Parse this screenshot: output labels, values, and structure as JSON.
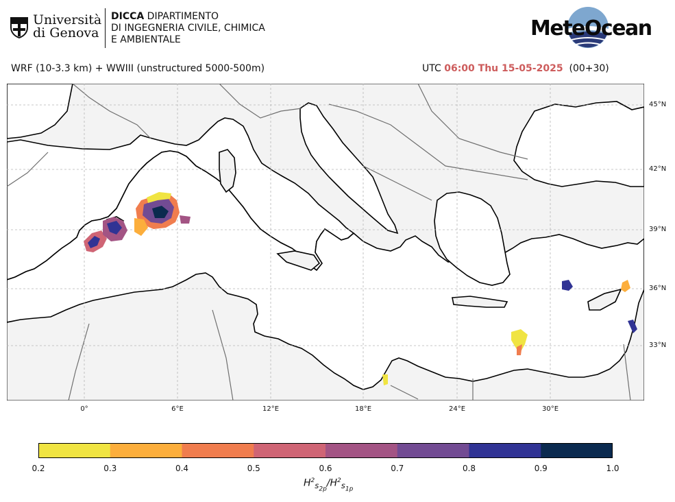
{
  "header": {
    "unige_line1": "Università",
    "unige_line2": "di Genova",
    "dicca_bold": "DICCA",
    "dicca_line1": "DIPARTIMENTO",
    "dicca_line2": "DI INGEGNERIA CIVILE, CHIMICA",
    "dicca_line3": "E AMBIENTALE",
    "meteo_logo": "MeteOcean"
  },
  "title": {
    "model": "WRF (10-3.3 km) + WWIII (unstructured 5000-500m)",
    "utc_prefix": "UTC",
    "time": "06:00 Thu 15-05-2025",
    "lead": "(00+30)"
  },
  "map": {
    "lat_labels": [
      "45°N",
      "42°N",
      "39°N",
      "36°N",
      "33°N"
    ],
    "lon_labels": [
      "0°",
      "6°E",
      "12°E",
      "18°E",
      "24°E",
      "30°E"
    ],
    "colors": {
      "land": "#f3f3f3",
      "sea": "#ffffff",
      "coast": "#000000",
      "border": "#6e6e6e",
      "grid": "#b5b5b5"
    }
  },
  "colorbar": {
    "ticks": [
      "0.2",
      "0.3",
      "0.4",
      "0.5",
      "0.6",
      "0.7",
      "0.8",
      "0.9",
      "1.0"
    ],
    "colors": [
      "#f0e442",
      "#fcae3c",
      "#f07d4e",
      "#cf6575",
      "#a35484",
      "#724b93",
      "#303394",
      "#0b2a4f"
    ],
    "label_base": "H",
    "label_sup": "2",
    "label_sub1": "s",
    "label_sub2": "2p",
    "label_sub3": "1p"
  }
}
